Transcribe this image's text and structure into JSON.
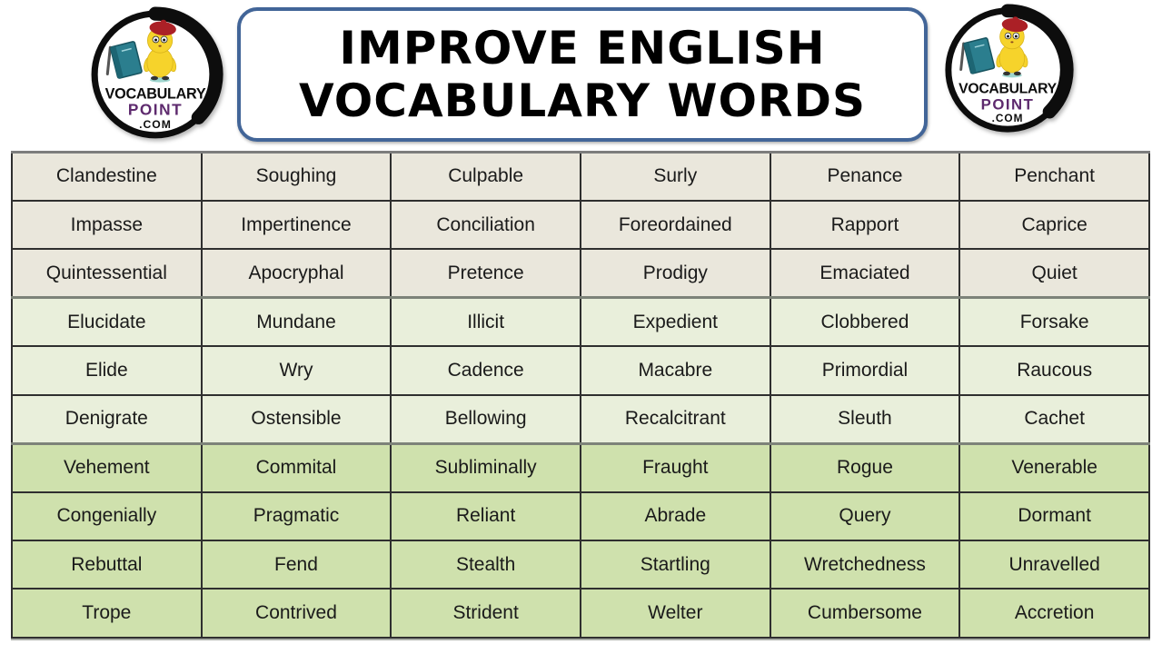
{
  "header": {
    "title_line1": "IMPROVE ENGLISH",
    "title_line2": "VOCABULARY WORDS",
    "logo": {
      "line1": "VOCABULARY",
      "line2": "POINT",
      "line3": ".COM"
    }
  },
  "table": {
    "rows": [
      [
        "Clandestine",
        "Soughing",
        "Culpable",
        "Surly",
        "Penance",
        "Penchant"
      ],
      [
        "Impasse",
        "Impertinence",
        "Conciliation",
        "Foreordained",
        "Rapport",
        "Caprice"
      ],
      [
        "Quintessential",
        "Apocryphal",
        "Pretence",
        "Prodigy",
        "Emaciated",
        "Quiet"
      ],
      [
        "Elucidate",
        "Mundane",
        "Illicit",
        "Expedient",
        "Clobbered",
        "Forsake"
      ],
      [
        "Elide",
        "Wry",
        "Cadence",
        "Macabre",
        "Primordial",
        "Raucous"
      ],
      [
        "Denigrate",
        "Ostensible",
        "Bellowing",
        "Recalcitrant",
        "Sleuth",
        "Cachet"
      ],
      [
        "Vehement",
        "Commital",
        "Subliminally",
        "Fraught",
        "Rogue",
        "Venerable"
      ],
      [
        "Congenially",
        "Pragmatic",
        "Reliant",
        "Abrade",
        "Query",
        "Dormant"
      ],
      [
        "Rebuttal",
        "Fend",
        "Stealth",
        "Startling",
        "Wretchedness",
        "Unravelled"
      ],
      [
        "Trope",
        "Contrived",
        "Strident",
        "Welter",
        "Cumbersome",
        "Accretion"
      ]
    ],
    "row_groups": [
      "beige",
      "beige",
      "beige",
      "pale",
      "pale",
      "pale",
      "green",
      "green",
      "green",
      "green"
    ],
    "group_separator_rows": [
      3,
      6
    ]
  },
  "colors": {
    "title-border": "#426598",
    "title-text": "#000000",
    "row-beige": "#eae7dc",
    "row-pale": "#e9efdb",
    "row-green": "#cfe1ad",
    "cell-border": "#2f2f2f",
    "table-outer-border": "#7d7d7d",
    "group-separator": "#7d8379",
    "cell-text": "#1a1a1a",
    "logo-black": "#0d0d0d",
    "logo-purple": "#5e2a6e",
    "mascot-yellow": "#f6d32b",
    "beret-red": "#ab2026",
    "book-teal": "#2b7e8e"
  }
}
